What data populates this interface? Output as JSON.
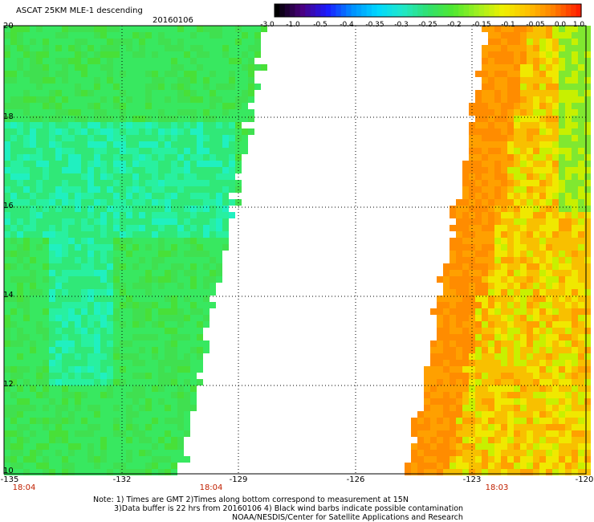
{
  "header": {
    "title": "ASCAT 25KM MLE-1 descending",
    "date": "20160106"
  },
  "colorbar": {
    "labels": [
      "-3.0",
      "-1.0",
      "-0.5",
      "-0.4",
      "-0.35",
      "-0.3",
      "-0.25",
      "-0.2",
      "-0.15",
      "-0.1",
      "-0.05",
      "0.0",
      "1.0"
    ],
    "colors": [
      "#000000",
      "#4a0080",
      "#1a1aff",
      "#0090ff",
      "#00d8ff",
      "#20e8c8",
      "#30e070",
      "#50e830",
      "#a0f020",
      "#f0f000",
      "#ffc000",
      "#ff8000",
      "#ff2000"
    ]
  },
  "axes": {
    "lat_labels": [
      "20",
      "18",
      "16",
      "14",
      "12",
      "10"
    ],
    "lon_labels": [
      "-135",
      "-132",
      "-129",
      "-126",
      "-123",
      "-120"
    ],
    "time_labels": [
      "18:04",
      "18:04",
      "18:03"
    ]
  },
  "swaths": {
    "left_palette": [
      "#38e860",
      "#40e050",
      "#30e878",
      "#20f0c0",
      "#28f0a0",
      "#48e038"
    ],
    "right_palette": [
      "#f8c000",
      "#ffa000",
      "#ff8c00",
      "#f0e800",
      "#c8f000",
      "#80e830"
    ]
  },
  "notes": {
    "line1": "Note: 1) Times are GMT 2)Times along bottom correspond to measurement at 15N",
    "line2": "3)Data buffer is 22 hrs from 20160106 4) Black wind barbs indicate possible contamination",
    "line3": "NOAA/NESDIS/Center for Satellite Applications and Research"
  }
}
